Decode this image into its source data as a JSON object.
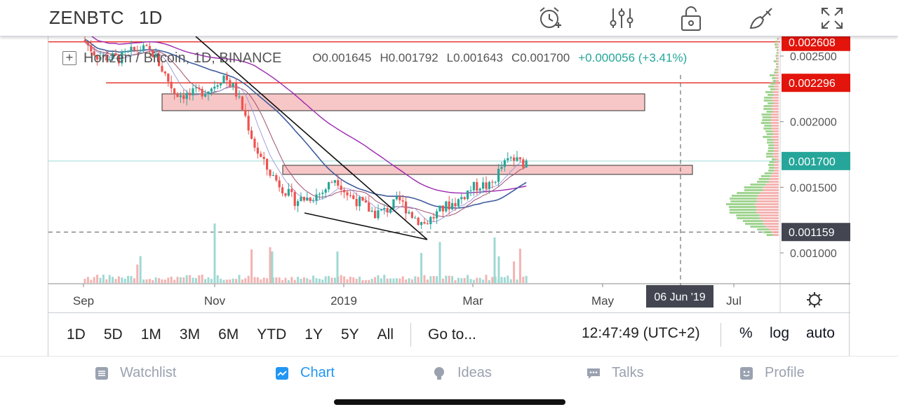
{
  "header": {
    "symbol": "ZENBTC",
    "interval": "1D",
    "icons": [
      "alarm-add-icon",
      "indicators-icon",
      "lock-icon",
      "drawing-brush-icon",
      "fullscreen-icon"
    ]
  },
  "legend": {
    "title": "Horizen / Bitcoin, 1D, BINANCE",
    "open": "O0.001645",
    "high": "H0.001792",
    "low": "L0.001643",
    "close": "C0.001700",
    "change": "+0.000056 (+3.41%)"
  },
  "chart_data": {
    "type": "candlestick",
    "symbol": "ZENBTC",
    "exchange": "BINANCE",
    "interval": "1D",
    "x_tick_labels": [
      "Sep",
      "Nov",
      "2019",
      "Mar",
      "May",
      "Jul"
    ],
    "y_tick_labels": [
      "0.002500",
      "0.002000",
      "0.001500",
      "0.001000"
    ],
    "ylim": [
      0.0009,
      0.0028
    ],
    "price_labels": [
      {
        "value": "0.002608",
        "color": "#e3140b"
      },
      {
        "value": "0.002296",
        "color": "#e3140b"
      },
      {
        "value": "0.001700",
        "color": "#26a69a"
      },
      {
        "value": "0.001159",
        "color": "#434651"
      }
    ],
    "crosshair_date": "06 Jun '19",
    "last_close": 0.0017,
    "ohlc_last": {
      "open": 0.001645,
      "high": 0.001792,
      "low": 0.001643,
      "close": 0.0017
    },
    "close_path": [
      [
        "Aug 20",
        0.00262
      ],
      [
        "Sep 1",
        0.0025
      ],
      [
        "Sep 15",
        0.00255
      ],
      [
        "Sep 30",
        0.0022
      ],
      [
        "Oct 15",
        0.00222
      ],
      [
        "Oct 31",
        0.0023
      ],
      [
        "Nov 10",
        0.0022
      ],
      [
        "Nov 22",
        0.00175
      ],
      [
        "Dec 5",
        0.00158
      ],
      [
        "Dec 15",
        0.00142
      ],
      [
        "Dec 25",
        0.00145
      ],
      [
        "Jan 1",
        0.0015
      ],
      [
        "Jan 12",
        0.00136
      ],
      [
        "Jan 25",
        0.00128
      ],
      [
        "Feb 5",
        0.00122
      ],
      [
        "Feb 15",
        0.00132
      ],
      [
        "Feb 25",
        0.0014
      ],
      [
        "Mar 5",
        0.0015
      ],
      [
        "Mar 15",
        0.0016
      ],
      [
        "Mar 22",
        0.00172
      ],
      [
        "Mar 28",
        0.0017
      ]
    ],
    "grid": false,
    "up_color": "#26a69a",
    "down_color": "#ef5350"
  },
  "period_bar": {
    "ranges": [
      "1D",
      "5D",
      "1M",
      "3M",
      "6M",
      "YTD",
      "1Y",
      "5Y",
      "All"
    ],
    "goto": "Go to...",
    "time": "12:47:49 (UTC+2)",
    "percent": "%",
    "log": "log",
    "auto": "auto"
  },
  "bottom_nav": {
    "items": [
      {
        "label": "Watchlist",
        "icon": "watchlist-icon",
        "active": false
      },
      {
        "label": "Chart",
        "icon": "chart-icon",
        "active": true
      },
      {
        "label": "Ideas",
        "icon": "ideas-icon",
        "active": false
      },
      {
        "label": "Talks",
        "icon": "talks-icon",
        "active": false
      },
      {
        "label": "Profile",
        "icon": "profile-icon",
        "active": false
      }
    ]
  },
  "colors": {
    "accent": "#2196f3",
    "resistance": "#e3140b",
    "zone_fill": "#f7c6c6",
    "ma_purple": "#9c27b0",
    "ma_blue": "#3f5d9c"
  }
}
